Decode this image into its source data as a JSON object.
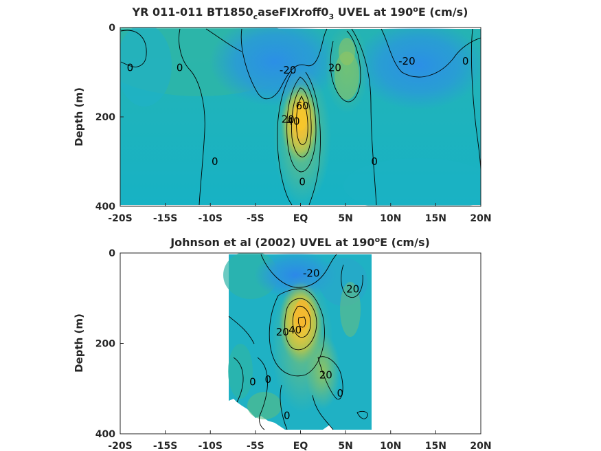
{
  "chart_data": [
    {
      "type": "heatmap",
      "title_main": "YR 011-011 BT1850",
      "title_sub1": "c",
      "title_mid": "aseFIXroff0",
      "title_sub2": "3",
      "title_tail": " UVEL at 190",
      "title_sup": "o",
      "title_end": "E (cm/s)",
      "ylabel": "Depth (m)",
      "xlim": [
        -20,
        20
      ],
      "ylim": [
        0,
        400
      ],
      "y_reversed": true,
      "xticks": [
        -20,
        -15,
        -10,
        -5,
        0,
        5,
        10,
        15,
        20
      ],
      "xticklabels": [
        "-20S",
        "-15S",
        "-10S",
        "-5S",
        "EQ",
        "5N",
        "10N",
        "15N",
        "20N"
      ],
      "yticks": [
        0,
        200,
        400
      ],
      "yticklabels": [
        "0",
        "200",
        "400"
      ],
      "data_extent_x": [
        -20,
        20
      ],
      "contour_labels": [
        {
          "text": "0",
          "x": -18.9,
          "y": 90
        },
        {
          "text": "0",
          "x": -13.4,
          "y": 90
        },
        {
          "text": "-20",
          "x": -1.4,
          "y": 95
        },
        {
          "text": "20",
          "x": 3.8,
          "y": 90
        },
        {
          "text": "-20",
          "x": 11.8,
          "y": 75
        },
        {
          "text": "0",
          "x": 18.3,
          "y": 75
        },
        {
          "text": "60",
          "x": 0.2,
          "y": 175
        },
        {
          "text": "20",
          "x": -1.4,
          "y": 205
        },
        {
          "text": "40",
          "x": -0.8,
          "y": 210
        },
        {
          "text": "0",
          "x": -9.5,
          "y": 300
        },
        {
          "text": "0",
          "x": 8.2,
          "y": 300
        },
        {
          "text": "0",
          "x": 0.2,
          "y": 345
        }
      ]
    },
    {
      "type": "heatmap",
      "title_main": "Johnson et al (2002) UVEL at 190",
      "title_sup": "o",
      "title_end": "E (cm/s)",
      "ylabel": "Depth (m)",
      "xlim": [
        -20,
        20
      ],
      "ylim": [
        0,
        400
      ],
      "y_reversed": true,
      "xticks": [
        -20,
        -15,
        -10,
        -5,
        0,
        5,
        10,
        15,
        20
      ],
      "xticklabels": [
        "-20S",
        "-15S",
        "-10S",
        "-5S",
        "EQ",
        "5N",
        "10N",
        "15N",
        "20N"
      ],
      "yticks": [
        0,
        200,
        400
      ],
      "yticklabels": [
        "0",
        "200",
        "400"
      ],
      "data_extent_x": [
        -8,
        8
      ],
      "contour_labels": [
        {
          "text": "-20",
          "x": 1.2,
          "y": 45
        },
        {
          "text": "20",
          "x": 5.8,
          "y": 80
        },
        {
          "text": "20",
          "x": -2.0,
          "y": 175
        },
        {
          "text": "40",
          "x": -0.6,
          "y": 170
        },
        {
          "text": "0",
          "x": -5.3,
          "y": 285
        },
        {
          "text": "0",
          "x": -3.6,
          "y": 280
        },
        {
          "text": "20",
          "x": 2.8,
          "y": 270
        },
        {
          "text": "0",
          "x": 4.4,
          "y": 310
        },
        {
          "text": "0",
          "x": -1.5,
          "y": 360
        }
      ]
    }
  ]
}
